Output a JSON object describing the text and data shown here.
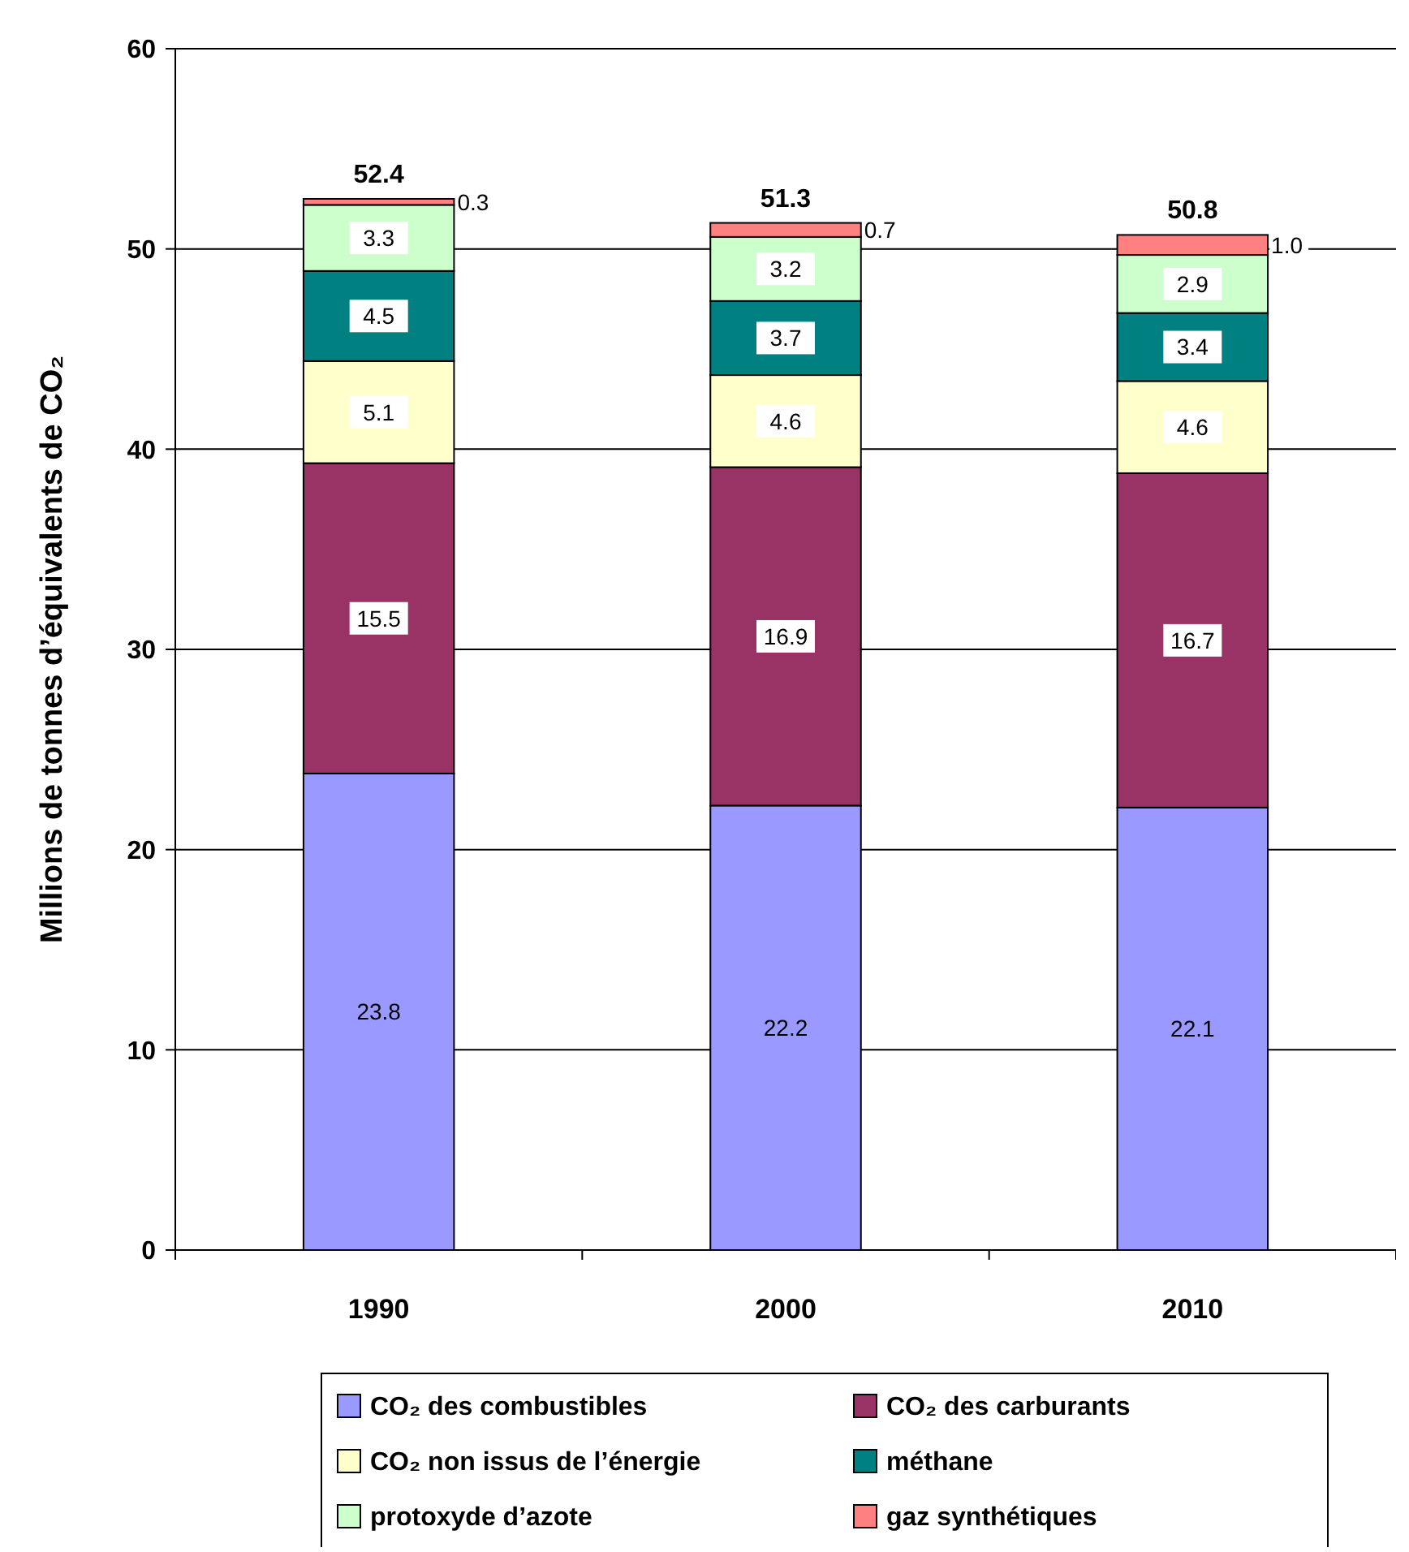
{
  "chart_data": {
    "type": "bar",
    "stacked": true,
    "ylabel": "Millions de tonnes d’équivalents de CO₂",
    "categories": [
      "1990",
      "2000",
      "2010"
    ],
    "ylim": [
      0,
      60
    ],
    "yticks": [
      0,
      10,
      20,
      30,
      40,
      50,
      60
    ],
    "grid": "y",
    "legend": "bottom",
    "series": [
      {
        "name": "CO₂ des combustibles",
        "color": "#9999ff",
        "values": [
          23.8,
          22.2,
          22.1
        ],
        "value_labels": [
          "23.8",
          "22.2",
          "22.1"
        ]
      },
      {
        "name": "CO₂ des carburants",
        "color": "#993366",
        "values": [
          15.5,
          16.9,
          16.7
        ],
        "value_labels": [
          "15.5",
          "16.9",
          "16.7"
        ]
      },
      {
        "name": "CO₂ non issus de l’énergie",
        "color": "#ffffcc",
        "values": [
          5.1,
          4.6,
          4.6
        ],
        "value_labels": [
          "5.1",
          "4.6",
          "4.6"
        ]
      },
      {
        "name": "méthane",
        "color": "#008080",
        "values": [
          4.5,
          3.7,
          3.4
        ],
        "value_labels": [
          "4.5",
          "3.7",
          "3.4"
        ]
      },
      {
        "name": "protoxyde d’azote",
        "color": "#ccffcc",
        "values": [
          3.3,
          3.2,
          2.9
        ],
        "value_labels": [
          "3.3",
          "3.2",
          "2.9"
        ]
      },
      {
        "name": "gaz synthétiques",
        "color": "#ff8080",
        "values": [
          0.3,
          0.7,
          1.0
        ],
        "value_labels": [
          "0.3",
          "0.7",
          "1.0"
        ]
      }
    ],
    "totals": [
      "52.4",
      "51.3",
      "50.8"
    ]
  }
}
